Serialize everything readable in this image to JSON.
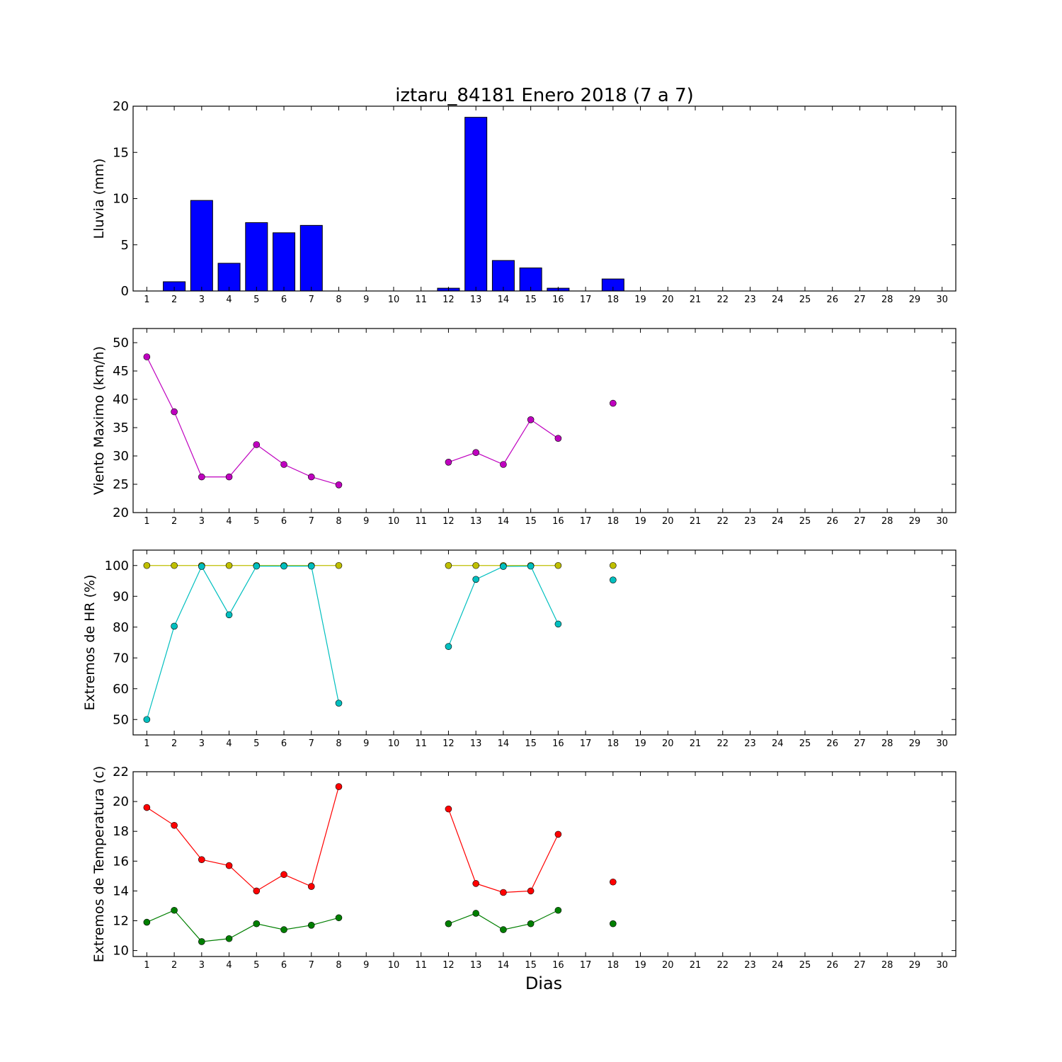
{
  "title": "iztaru_84181 Enero 2018  (7 a 7)",
  "xlabel": "Dias",
  "chart_data": [
    {
      "type": "bar",
      "ylabel": "Lluvia (mm)",
      "x": [
        1,
        2,
        3,
        4,
        5,
        6,
        7,
        8,
        9,
        10,
        11,
        12,
        13,
        14,
        15,
        16,
        17,
        18,
        19,
        20,
        21,
        22,
        23,
        24,
        25,
        26,
        27,
        28,
        29,
        30
      ],
      "xlim": [
        0.5,
        30.5
      ],
      "ylim": [
        0,
        20
      ],
      "yticks": [
        0,
        5,
        10,
        15,
        20
      ],
      "color": "#0000ff",
      "series": [
        {
          "values": [
            0,
            1.0,
            9.8,
            3.0,
            7.4,
            6.3,
            7.1,
            0,
            0,
            0,
            0,
            0.3,
            18.8,
            3.3,
            2.5,
            0.3,
            0,
            1.3,
            0,
            0,
            0,
            0,
            0,
            0,
            0,
            0,
            0,
            0,
            0,
            0
          ]
        }
      ]
    },
    {
      "type": "line",
      "ylabel": "Viento Maximo (km/h)",
      "x": [
        1,
        2,
        3,
        4,
        5,
        6,
        7,
        8,
        9,
        10,
        11,
        12,
        13,
        14,
        15,
        16,
        17,
        18,
        19,
        20,
        21,
        22,
        23,
        24,
        25,
        26,
        27,
        28,
        29,
        30
      ],
      "xlim": [
        0.5,
        30.5
      ],
      "ylim": [
        20,
        52.5
      ],
      "yticks": [
        20,
        25,
        30,
        35,
        40,
        45,
        50
      ],
      "series": [
        {
          "color": "#bf00bf",
          "values": [
            47.5,
            37.8,
            26.3,
            26.3,
            32.0,
            28.5,
            26.3,
            24.9,
            null,
            null,
            null,
            28.9,
            30.6,
            28.5,
            36.4,
            33.1,
            null,
            39.3,
            null,
            null,
            null,
            null,
            null,
            null,
            null,
            null,
            null,
            null,
            null,
            null
          ]
        }
      ]
    },
    {
      "type": "line",
      "ylabel": "Extremos de HR (%)",
      "x": [
        1,
        2,
        3,
        4,
        5,
        6,
        7,
        8,
        9,
        10,
        11,
        12,
        13,
        14,
        15,
        16,
        17,
        18,
        19,
        20,
        21,
        22,
        23,
        24,
        25,
        26,
        27,
        28,
        29,
        30
      ],
      "xlim": [
        0.5,
        30.5
      ],
      "ylim": [
        45,
        105
      ],
      "yticks": [
        50,
        60,
        70,
        80,
        90,
        100
      ],
      "series": [
        {
          "color": "#bfbf00",
          "values": [
            100,
            100,
            100,
            100,
            100,
            100,
            100,
            100,
            null,
            null,
            null,
            100,
            100,
            100,
            100,
            100,
            null,
            100,
            null,
            null,
            null,
            null,
            null,
            null,
            null,
            null,
            null,
            null,
            null,
            null
          ]
        },
        {
          "color": "#00bfbf",
          "values": [
            50,
            80.3,
            99.7,
            84,
            99.8,
            99.8,
            99.8,
            55.3,
            null,
            null,
            null,
            73.7,
            95.5,
            99.7,
            99.8,
            81,
            null,
            95.3,
            null,
            null,
            null,
            null,
            null,
            null,
            null,
            null,
            null,
            null,
            null,
            null
          ]
        }
      ]
    },
    {
      "type": "line",
      "ylabel": "Extremos de Temperatura (c)",
      "x": [
        1,
        2,
        3,
        4,
        5,
        6,
        7,
        8,
        9,
        10,
        11,
        12,
        13,
        14,
        15,
        16,
        17,
        18,
        19,
        20,
        21,
        22,
        23,
        24,
        25,
        26,
        27,
        28,
        29,
        30
      ],
      "xlim": [
        0.5,
        30.5
      ],
      "ylim": [
        9.6,
        22
      ],
      "yticks": [
        10,
        12,
        14,
        16,
        18,
        20,
        22
      ],
      "series": [
        {
          "color": "#ff0000",
          "values": [
            19.6,
            18.4,
            16.1,
            15.7,
            14.0,
            15.1,
            14.3,
            21.0,
            null,
            null,
            null,
            19.5,
            14.5,
            13.9,
            14.0,
            17.8,
            null,
            14.6,
            null,
            null,
            null,
            null,
            null,
            null,
            null,
            null,
            null,
            null,
            null,
            null
          ]
        },
        {
          "color": "#007f00",
          "values": [
            11.9,
            12.7,
            10.6,
            10.8,
            11.8,
            11.4,
            11.7,
            12.2,
            null,
            null,
            null,
            11.8,
            12.5,
            11.4,
            11.8,
            12.7,
            null,
            11.8,
            null,
            null,
            null,
            null,
            null,
            null,
            null,
            null,
            null,
            null,
            null,
            null
          ]
        }
      ]
    }
  ]
}
